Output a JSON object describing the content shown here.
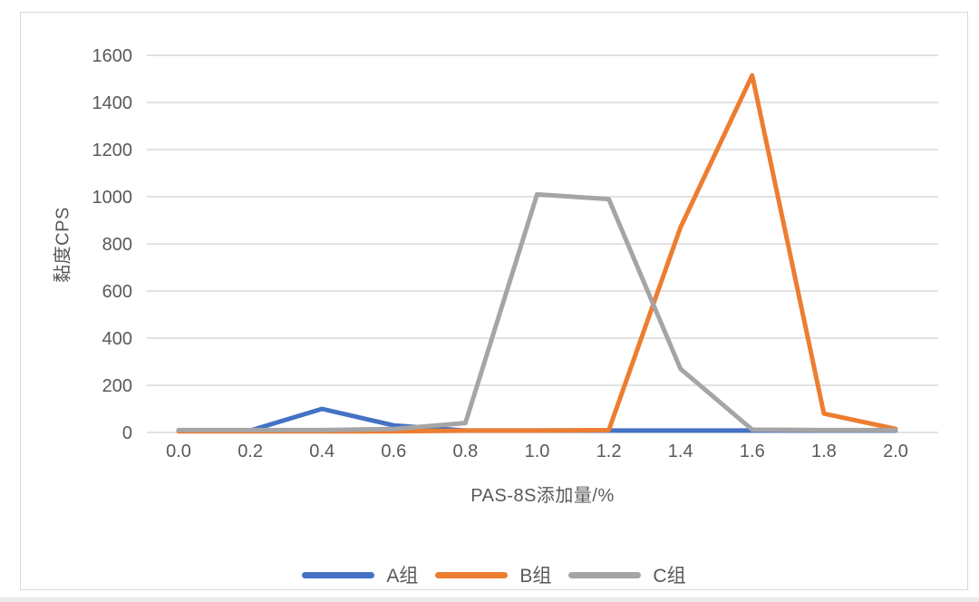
{
  "page": {
    "background": "#ffffff",
    "card_border_color": "#d9d9d9",
    "text_color": "#595959"
  },
  "chart_data": {
    "type": "line",
    "title": "",
    "xlabel": "PAS-8S添加量/%",
    "ylabel": "黏度CPS",
    "x": [
      0.0,
      0.2,
      0.4,
      0.6,
      0.8,
      1.0,
      1.2,
      1.4,
      1.6,
      1.8,
      2.0
    ],
    "xtick_labels": [
      "0.0",
      "0.2",
      "0.4",
      "0.6",
      "0.8",
      "1.0",
      "1.2",
      "1.4",
      "1.6",
      "1.8",
      "2.0"
    ],
    "yticks": [
      0,
      200,
      400,
      600,
      800,
      1000,
      1200,
      1400,
      1600
    ],
    "ylim": [
      0,
      1600
    ],
    "xlim": [
      -0.09,
      2.12
    ],
    "grid": "horizontal",
    "gridline_color": "#d9d9d9",
    "tick_label_color": "#595959",
    "legend_position": "bottom",
    "series": [
      {
        "name": "A组",
        "color": "#4472C4",
        "values": [
          8,
          8,
          100,
          30,
          8,
          8,
          8,
          8,
          8,
          8,
          8
        ]
      },
      {
        "name": "B组",
        "color": "#ED7D31",
        "values": [
          5,
          5,
          5,
          5,
          8,
          8,
          10,
          870,
          1515,
          80,
          15
        ]
      },
      {
        "name": "C组",
        "color": "#A5A5A5",
        "values": [
          10,
          10,
          10,
          15,
          40,
          1010,
          990,
          270,
          12,
          10,
          10
        ]
      }
    ]
  }
}
